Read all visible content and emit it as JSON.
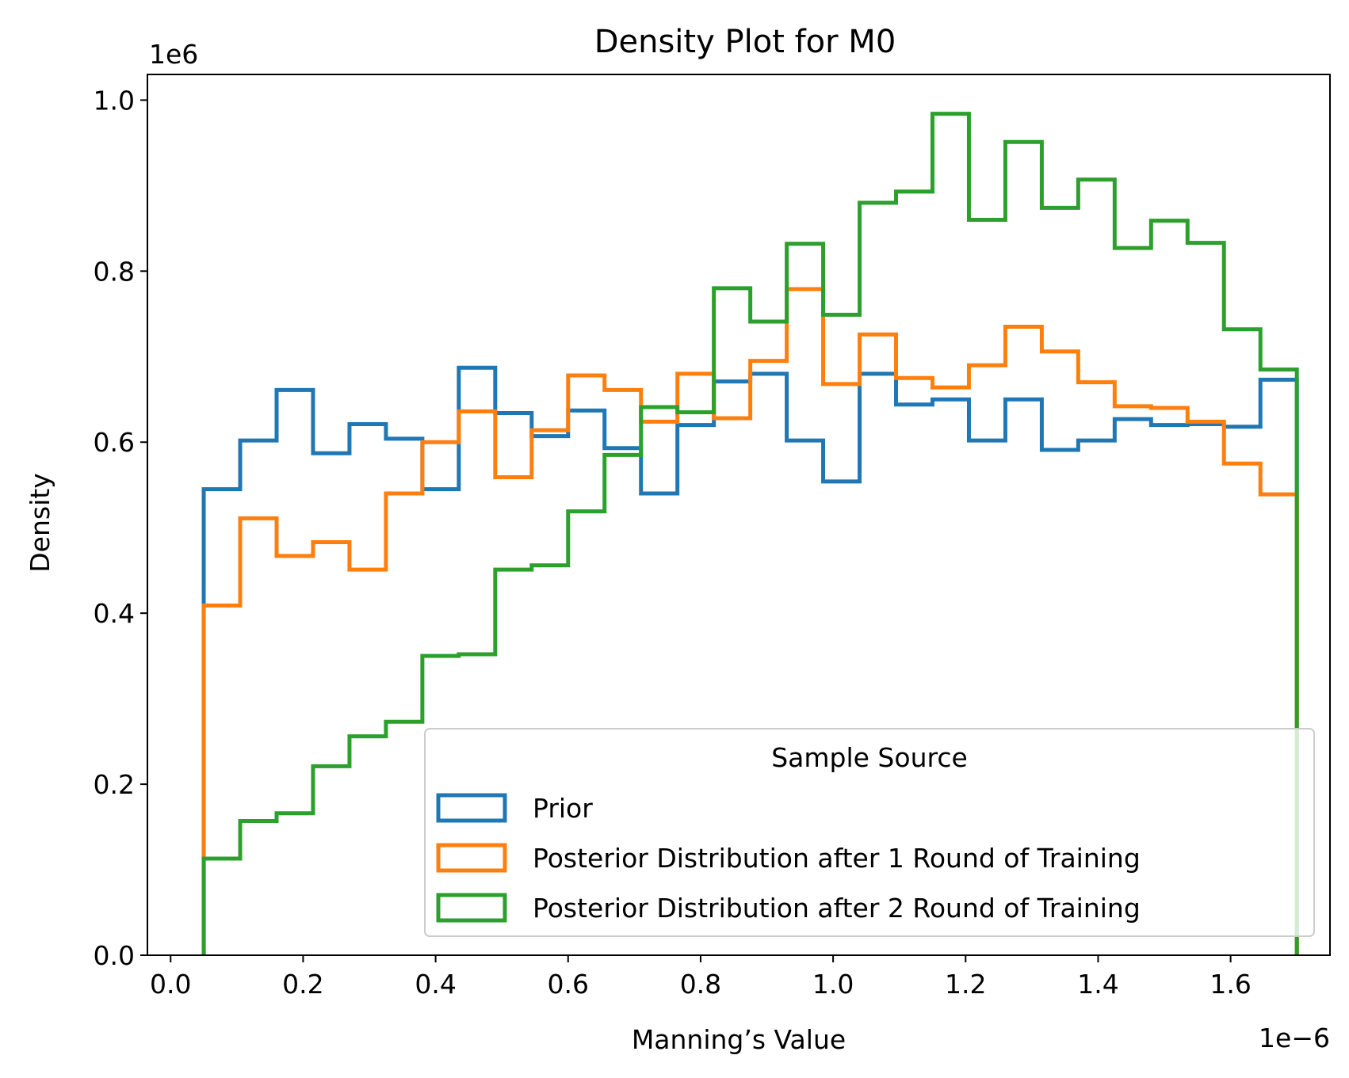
{
  "chart_data": {
    "type": "step-histogram",
    "title": "Density Plot for M0",
    "xlabel": "Manning’s Value",
    "ylabel": "Density",
    "x_offset_text": "1e−6",
    "y_offset_text": "1e6",
    "xlim": [
      -0.035,
      1.75
    ],
    "ylim": [
      0.0,
      1.03
    ],
    "x_ticks": [
      0.0,
      0.2,
      0.4,
      0.6,
      0.8,
      1.0,
      1.2,
      1.4,
      1.6
    ],
    "x_tick_labels": [
      "0.0",
      "0.2",
      "0.4",
      "0.6",
      "0.8",
      "1.0",
      "1.2",
      "1.4",
      "1.6"
    ],
    "y_ticks": [
      0.0,
      0.2,
      0.4,
      0.6,
      0.8,
      1.0
    ],
    "y_tick_labels": [
      "0.0",
      "0.2",
      "0.4",
      "0.6",
      "0.8",
      "1.0"
    ],
    "grid": false,
    "bin_edges": [
      0.05,
      0.105,
      0.16,
      0.215,
      0.27,
      0.325,
      0.38,
      0.435,
      0.49,
      0.545,
      0.6,
      0.655,
      0.71,
      0.765,
      0.82,
      0.875,
      0.93,
      0.985,
      1.04,
      1.095,
      1.15,
      1.205,
      1.26,
      1.315,
      1.37,
      1.425,
      1.48,
      1.535,
      1.59,
      1.645,
      1.7
    ],
    "series": [
      {
        "name": "Prior",
        "color": "#1f77b4",
        "values": [
          0.545,
          0.602,
          0.661,
          0.587,
          0.621,
          0.604,
          0.545,
          0.687,
          0.634,
          0.607,
          0.637,
          0.593,
          0.54,
          0.62,
          0.671,
          0.68,
          0.602,
          0.554,
          0.68,
          0.644,
          0.65,
          0.602,
          0.65,
          0.591,
          0.602,
          0.627,
          0.62,
          0.621,
          0.618,
          0.673
        ]
      },
      {
        "name": "Posterior Distribution after 1 Round of Training",
        "color": "#ff7f0e",
        "values": [
          0.409,
          0.511,
          0.467,
          0.483,
          0.451,
          0.54,
          0.6,
          0.636,
          0.559,
          0.614,
          0.678,
          0.661,
          0.624,
          0.68,
          0.628,
          0.695,
          0.779,
          0.668,
          0.726,
          0.675,
          0.664,
          0.69,
          0.735,
          0.706,
          0.67,
          0.642,
          0.64,
          0.624,
          0.575,
          0.539
        ]
      },
      {
        "name": "Posterior Distribution after 2 Round of Training",
        "color": "#2ca02c",
        "values": [
          0.113,
          0.157,
          0.166,
          0.221,
          0.256,
          0.273,
          0.35,
          0.352,
          0.451,
          0.456,
          0.519,
          0.585,
          0.641,
          0.635,
          0.78,
          0.741,
          0.832,
          0.749,
          0.88,
          0.893,
          0.984,
          0.86,
          0.951,
          0.874,
          0.907,
          0.827,
          0.859,
          0.833,
          0.732,
          0.685
        ]
      }
    ],
    "legend": {
      "title": "Sample Source",
      "placement": "lower-right",
      "entries": [
        "Prior",
        "Posterior Distribution after 1 Round of Training",
        "Posterior Distribution after 2 Round of Training"
      ]
    }
  }
}
